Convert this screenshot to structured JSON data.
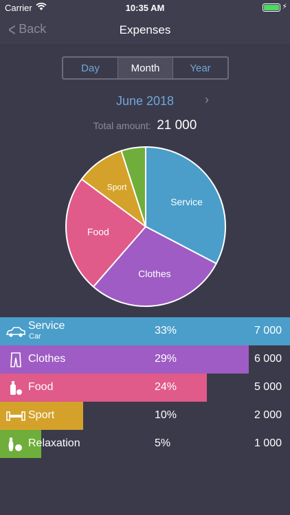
{
  "status_bar": {
    "carrier": "Carrier",
    "time": "10:35 AM"
  },
  "nav": {
    "back_label": "Back",
    "title": "Expenses"
  },
  "segments": {
    "options": [
      "Day",
      "Month",
      "Year"
    ],
    "selected": "Month"
  },
  "period": {
    "label": "June 2018"
  },
  "total": {
    "label": "Total amount:",
    "value": "21 000"
  },
  "chart_data": {
    "type": "pie",
    "slices": [
      {
        "label": "Service",
        "value": 33,
        "color": "#4a9ec9"
      },
      {
        "label": "Clothes",
        "value": 29,
        "color": "#9e5cc4"
      },
      {
        "label": "Food",
        "value": 24,
        "color": "#e05a8a"
      },
      {
        "label": "Sport",
        "value": 10,
        "color": "#d4a22a"
      },
      {
        "label": "",
        "value": 5,
        "color": "#6fae3a"
      }
    ]
  },
  "items": [
    {
      "name": "Service",
      "sub": "Car",
      "percent": "33%",
      "amount": "7 000",
      "share": 1.0,
      "color": "#4a9ec9",
      "icon": "car-icon"
    },
    {
      "name": "Clothes",
      "sub": "",
      "percent": "29%",
      "amount": "6 000",
      "share": 0.857,
      "color": "#9e5cc4",
      "icon": "pants-icon"
    },
    {
      "name": "Food",
      "sub": "",
      "percent": "24%",
      "amount": "5 000",
      "share": 0.714,
      "color": "#e05a8a",
      "icon": "bottle-icon"
    },
    {
      "name": "Sport",
      "sub": "",
      "percent": "10%",
      "amount": "2 000",
      "share": 0.286,
      "color": "#d4a22a",
      "icon": "dumbbell-icon"
    },
    {
      "name": "Relaxation",
      "sub": "",
      "percent": "5%",
      "amount": "1 000",
      "share": 0.143,
      "color": "#6fae3a",
      "icon": "bowling-icon"
    }
  ]
}
